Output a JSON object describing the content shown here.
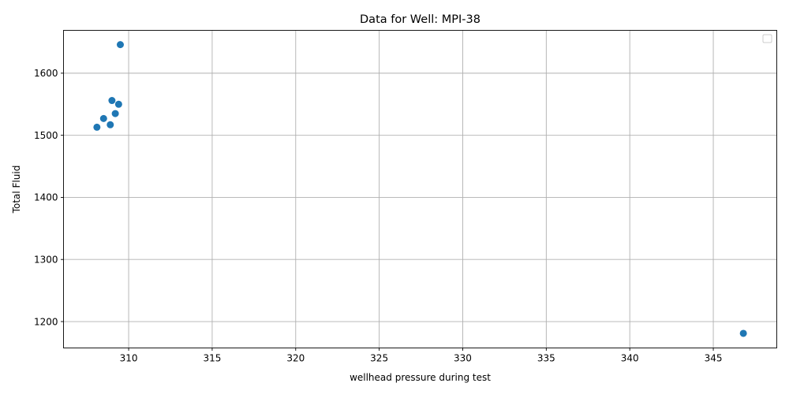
{
  "chart_data": {
    "type": "scatter",
    "title": "Data for Well: MPI-38",
    "xlabel": "wellhead pressure during test",
    "ylabel": "Total Fluid",
    "xlim": [
      306.1,
      348.8
    ],
    "ylim": [
      1157.5,
      1669
    ],
    "xticks": [
      310,
      315,
      320,
      325,
      330,
      335,
      340,
      345
    ],
    "yticks": [
      1200,
      1300,
      1400,
      1500,
      1600
    ],
    "grid": true,
    "legend": {
      "position": "top-right",
      "entries": []
    },
    "marker_color": "#1f77b4",
    "series": [
      {
        "points": [
          {
            "x": 309.5,
            "y": 1646
          },
          {
            "x": 309.0,
            "y": 1556
          },
          {
            "x": 309.4,
            "y": 1550
          },
          {
            "x": 309.2,
            "y": 1535
          },
          {
            "x": 308.5,
            "y": 1527
          },
          {
            "x": 308.9,
            "y": 1517
          },
          {
            "x": 308.1,
            "y": 1513
          },
          {
            "x": 346.8,
            "y": 1181
          }
        ]
      }
    ]
  }
}
